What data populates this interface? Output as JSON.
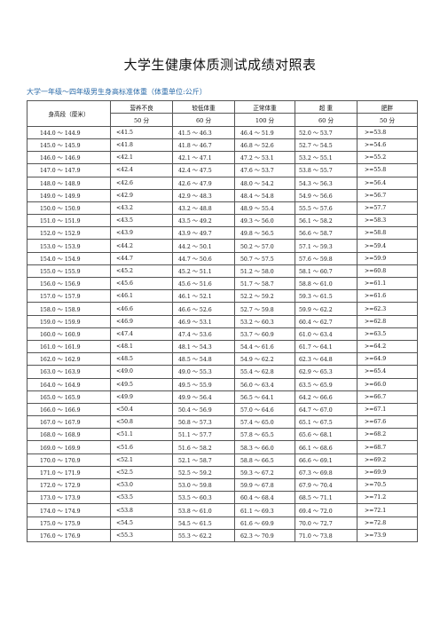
{
  "title": "大学生健康体质测试成绩对照表",
  "subtitle": "大学一年级～四年级男生身高标准体重（体重单位:公斤）",
  "headers": {
    "height": "身高段（厘米）",
    "categories": [
      "营养不良",
      "较低体重",
      "正常体重",
      "超 重",
      "肥胖"
    ],
    "scores": [
      "50 分",
      "60 分",
      "100 分",
      "60 分",
      "50 分"
    ]
  },
  "rows": [
    [
      "144.0 ～ 144.9",
      "<41.5",
      "41.5 ～ 46.3",
      "46.4 ～ 51.9",
      "52.0 ～ 53.7",
      ">=53.8"
    ],
    [
      "145.0 ～ 145.9",
      "<41.8",
      "41.8 ～ 46.7",
      "46.8 ～ 52.6",
      "52.7 ～ 54.5",
      ">=54.6"
    ],
    [
      "146.0 ～ 146.9",
      "<42.1",
      "42.1 ～ 47.1",
      "47.2 ～ 53.1",
      "53.2 ～ 55.1",
      ">=55.2"
    ],
    [
      "147.0 ～ 147.9",
      "<42.4",
      "42.4 ～ 47.5",
      "47.6 ～ 53.7",
      "53.8 ～ 55.7",
      ">=55.8"
    ],
    [
      "148.0 ～ 148.9",
      "<42.6",
      "42.6 ～ 47.9",
      "48.0 ～ 54.2",
      "54.3 ～ 56.3",
      ">=56.4"
    ],
    [
      "149.0 ～ 149.9",
      "<42.9",
      "42.9 ～ 48.3",
      "48.4 ～ 54.8",
      "54.9 ～ 56.6",
      ">=56.7"
    ],
    [
      "150.0 ～ 150.9",
      "<43.2",
      "43.2 ～ 48.8",
      "48.9 ～ 55.4",
      "55.5 ～ 57.6",
      ">=57.7"
    ],
    [
      "151.0 ～ 151.9",
      "<43.5",
      "43.5 ～ 49.2",
      "49.3 ～ 56.0",
      "56.1 ～ 58.2",
      ">=58.3"
    ],
    [
      "152.0 ～ 152.9",
      "<43.9",
      "43.9 ～ 49.7",
      "49.8 ～ 56.5",
      "56.6 ～ 58.7",
      ">=58.8"
    ],
    [
      "153.0 ～ 153.9",
      "<44.2",
      "44.2 ～ 50.1",
      "50.2 ～ 57.0",
      "57.1 ～ 59.3",
      ">=59.4"
    ],
    [
      "154.0 ～ 154.9",
      "<44.7",
      "44.7 ～ 50.6",
      "50.7 ～ 57.5",
      "57.6 ～ 59.8",
      ">=59.9"
    ],
    [
      "155.0 ～ 155.9",
      "<45.2",
      "45.2 ～ 51.1",
      "51.2 ～ 58.0",
      "58.1 ～ 60.7",
      ">=60.8"
    ],
    [
      "156.0 ～ 156.9",
      "<45.6",
      "45.6 ～ 51.6",
      "51.7 ～ 58.7",
      "58.8 ～ 61.0",
      ">=61.1"
    ],
    [
      "157.0 ～ 157.9",
      "<46.1",
      "46.1 ～ 52.1",
      "52.2 ～ 59.2",
      "59.3 ～ 61.5",
      ">=61.6"
    ],
    [
      "158.0 ～ 158.9",
      "<46.6",
      "46.6 ～ 52.6",
      "52.7 ～ 59.8",
      "59.9 ～ 62.2",
      ">=62.3"
    ],
    [
      "159.0 ～ 159.9",
      "<46.9",
      "46.9 ～ 53.1",
      "53.2 ～ 60.3",
      "60.4 ～ 62.7",
      ">=62.8"
    ],
    [
      "160.0 ～ 160.9",
      "<47.4",
      "47.4 ～ 53.6",
      "53.7 ～ 60.9",
      "61.0 ～ 63.4",
      ">=63.5"
    ],
    [
      "161.0 ～ 161.9",
      "<48.1",
      "48.1 ～ 54.3",
      "54.4 ～ 61.6",
      "61.7 ～ 64.1",
      ">=64.2"
    ],
    [
      "162.0 ～ 162.9",
      "<48.5",
      "48.5 ～ 54.8",
      "54.9 ～ 62.2",
      "62.3 ～ 64.8",
      ">=64.9"
    ],
    [
      "163.0 ～ 163.9",
      "<49.0",
      "49.0 ～ 55.3",
      "55.4 ～ 62.8",
      "62.9 ～ 65.3",
      ">=65.4"
    ],
    [
      "164.0 ～ 164.9",
      "<49.5",
      "49.5 ～ 55.9",
      "56.0 ～ 63.4",
      "63.5 ～ 65.9",
      ">=66.0"
    ],
    [
      "165.0 ～ 165.9",
      "<49.9",
      "49.9 ～ 56.4",
      "56.5 ～ 64.1",
      "64.2 ～ 66.6",
      ">=66.7"
    ],
    [
      "166.0 ～ 166.9",
      "<50.4",
      "50.4 ～ 56.9",
      "57.0 ～ 64.6",
      "64.7 ～ 67.0",
      ">=67.1"
    ],
    [
      "167.0 ～ 167.9",
      "<50.8",
      "50.8 ～ 57.3",
      "57.4 ～ 65.0",
      "65.1 ～ 67.5",
      ">=67.6"
    ],
    [
      "168.0 ～ 168.9",
      "<51.1",
      "51.1 ～ 57.7",
      "57.8 ～ 65.5",
      "65.6 ～ 68.1",
      ">=68.2"
    ],
    [
      "169.0 ～ 169.9",
      "<51.6",
      "51.6 ～ 58.2",
      "58.3 ～ 66.0",
      "66.1 ～ 68.6",
      ">=68.7"
    ],
    [
      "170.0 ～ 170.9",
      "<52.1",
      "52.1 ～ 58.7",
      "58.8 ～ 66.5",
      "66.6 ～ 69.1",
      ">=69.2"
    ],
    [
      "171.0 ～ 171.9",
      "<52.5",
      "52.5 ～ 59.2",
      "59.3 ～ 67.2",
      "67.3 ～ 69.8",
      ">=69.9"
    ],
    [
      "172.0 ～ 172.9",
      "<53.0",
      "53.0 ～ 59.8",
      "59.9 ～ 67.8",
      "67.9 ～ 70.4",
      ">=70.5"
    ],
    [
      "173.0 ～ 173.9",
      "<53.5",
      "53.5 ～ 60.3",
      "60.4 ～ 68.4",
      "68.5 ～ 71.1",
      ">=71.2"
    ],
    [
      "174.0 ～ 174.9",
      "<53.8",
      "53.8 ～ 61.0",
      "61.1 ～ 69.3",
      "69.4 ～ 72.0",
      ">=72.1"
    ],
    [
      "175.0 ～ 175.9",
      "<54.5",
      "54.5 ～ 61.5",
      "61.6 ～ 69.9",
      "70.0 ～ 72.7",
      ">=72.8"
    ],
    [
      "176.0 ～ 176.9",
      "<55.3",
      "55.3 ～ 62.2",
      "62.3 ～ 70.9",
      "71.0 ～ 73.8",
      ">=73.9"
    ]
  ]
}
